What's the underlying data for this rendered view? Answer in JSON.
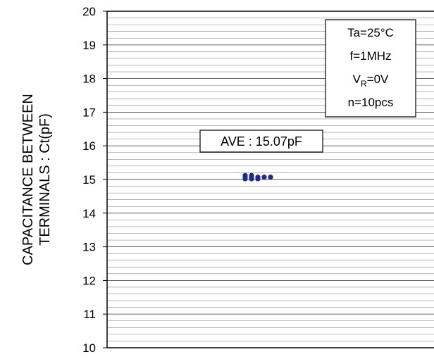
{
  "chart_data": {
    "type": "scatter",
    "ylabel_lines": [
      "CAPACITANCE BETWEEN",
      "TERMINALS : Ct(pF)"
    ],
    "ylim": [
      10,
      20
    ],
    "yticks": [
      "10",
      "11",
      "12",
      "13",
      "14",
      "15",
      "16",
      "17",
      "18",
      "19",
      "20"
    ],
    "minor_step": 0.2,
    "grid": true,
    "conditions": {
      "ta": "Ta=25°C",
      "f": "f=1MHz",
      "vr_main": "V",
      "vr_sub": "R",
      "vr_rest": "=0V",
      "n": "n=10pcs"
    },
    "average_label": "AVE : 15.07pF",
    "points": [
      {
        "y": 15.02
      },
      {
        "y": 15.02
      },
      {
        "y": 15.02
      },
      {
        "y": 15.07
      },
      {
        "y": 15.07
      },
      {
        "y": 15.07
      },
      {
        "y": 15.07
      },
      {
        "y": 15.07
      },
      {
        "y": 15.12
      },
      {
        "y": 15.12
      }
    ],
    "marker_color": "#1f2a8a"
  }
}
